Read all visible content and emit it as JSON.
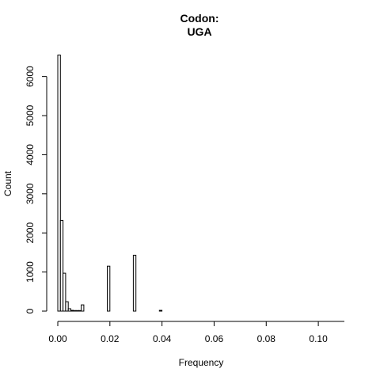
{
  "chart_data": {
    "type": "bar",
    "title_lines": [
      "Codon:",
      "UGA"
    ],
    "xlabel": "Frequency",
    "ylabel": "Count",
    "xlim": [
      0,
      0.11
    ],
    "ylim": [
      0,
      6600
    ],
    "x_ticks": [
      0.0,
      0.02,
      0.04,
      0.06,
      0.08,
      0.1
    ],
    "x_tick_labels": [
      "0.00",
      "0.02",
      "0.04",
      "0.06",
      "0.08",
      "0.10"
    ],
    "y_ticks": [
      0,
      1000,
      2000,
      3000,
      4000,
      5000,
      6000
    ],
    "y_tick_labels": [
      "0",
      "1000",
      "2000",
      "3000",
      "4000",
      "5000",
      "6000"
    ],
    "bin_width": 0.001,
    "bins": [
      {
        "x0": 0.0,
        "count": 6550
      },
      {
        "x0": 0.001,
        "count": 2320
      },
      {
        "x0": 0.002,
        "count": 970
      },
      {
        "x0": 0.003,
        "count": 240
      },
      {
        "x0": 0.004,
        "count": 60
      },
      {
        "x0": 0.005,
        "count": 20
      },
      {
        "x0": 0.006,
        "count": 15
      },
      {
        "x0": 0.007,
        "count": 15
      },
      {
        "x0": 0.008,
        "count": 15
      },
      {
        "x0": 0.009,
        "count": 160
      },
      {
        "x0": 0.019,
        "count": 1150
      },
      {
        "x0": 0.029,
        "count": 1430
      },
      {
        "x0": 0.039,
        "count": 20
      }
    ],
    "grid": false,
    "legend": "none"
  }
}
